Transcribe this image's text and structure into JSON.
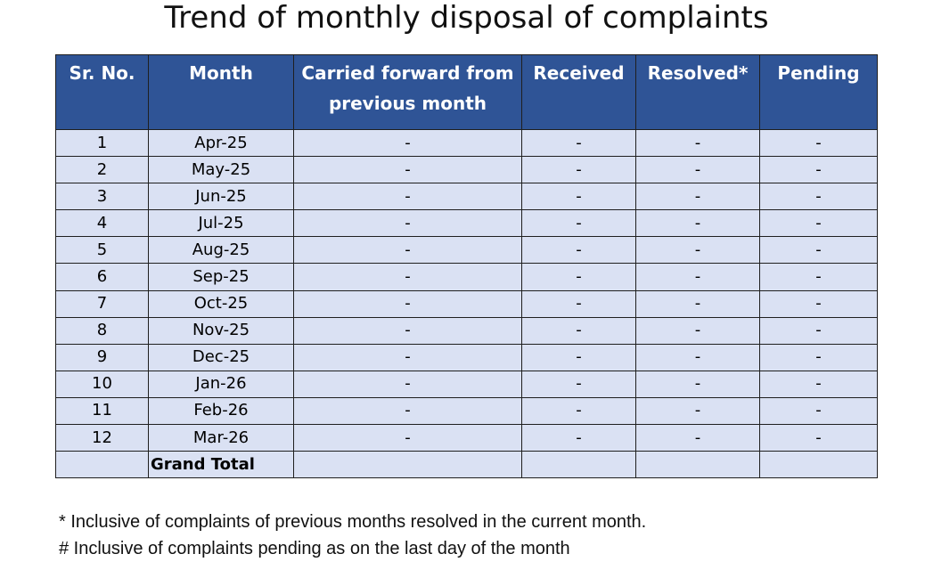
{
  "title": "Trend of monthly disposal of complaints",
  "table": {
    "headers": {
      "sr_no": "Sr. No.",
      "month": "Month",
      "carried_forward": "Carried forward from previous month",
      "received": "Received",
      "resolved": "Resolved*",
      "pending": "Pending"
    },
    "rows": [
      {
        "sr": "1",
        "month": "Apr-25",
        "carried": "-",
        "received": "-",
        "resolved": "-",
        "pending": "-"
      },
      {
        "sr": "2",
        "month": "May-25",
        "carried": "-",
        "received": "-",
        "resolved": "-",
        "pending": "-"
      },
      {
        "sr": "3",
        "month": "Jun-25",
        "carried": "-",
        "received": "-",
        "resolved": "-",
        "pending": "-"
      },
      {
        "sr": "4",
        "month": "Jul-25",
        "carried": "-",
        "received": "-",
        "resolved": "-",
        "pending": "-"
      },
      {
        "sr": "5",
        "month": "Aug-25",
        "carried": "-",
        "received": "-",
        "resolved": "-",
        "pending": "-"
      },
      {
        "sr": "6",
        "month": "Sep-25",
        "carried": "-",
        "received": "-",
        "resolved": "-",
        "pending": "-"
      },
      {
        "sr": "7",
        "month": "Oct-25",
        "carried": "-",
        "received": "-",
        "resolved": "-",
        "pending": "-"
      },
      {
        "sr": "8",
        "month": "Nov-25",
        "carried": "-",
        "received": "-",
        "resolved": "-",
        "pending": "-"
      },
      {
        "sr": "9",
        "month": "Dec-25",
        "carried": "-",
        "received": "-",
        "resolved": "-",
        "pending": "-"
      },
      {
        "sr": "10",
        "month": "Jan-26",
        "carried": "-",
        "received": "-",
        "resolved": "-",
        "pending": "-"
      },
      {
        "sr": "11",
        "month": "Feb-26",
        "carried": "-",
        "received": "-",
        "resolved": "-",
        "pending": "-"
      },
      {
        "sr": "12",
        "month": "Mar-26",
        "carried": "-",
        "received": "-",
        "resolved": "-",
        "pending": "-"
      }
    ],
    "grand_total_label": "Grand Total"
  },
  "notes": [
    "* Inclusive of complaints of previous months resolved in the current month.",
    "# Inclusive of complaints pending as on the last day of the month"
  ],
  "colors": {
    "header_bg": "#2f5496",
    "header_text": "#ffffff",
    "row_bg": "#dae1f3",
    "border": "#1f1f1f"
  }
}
